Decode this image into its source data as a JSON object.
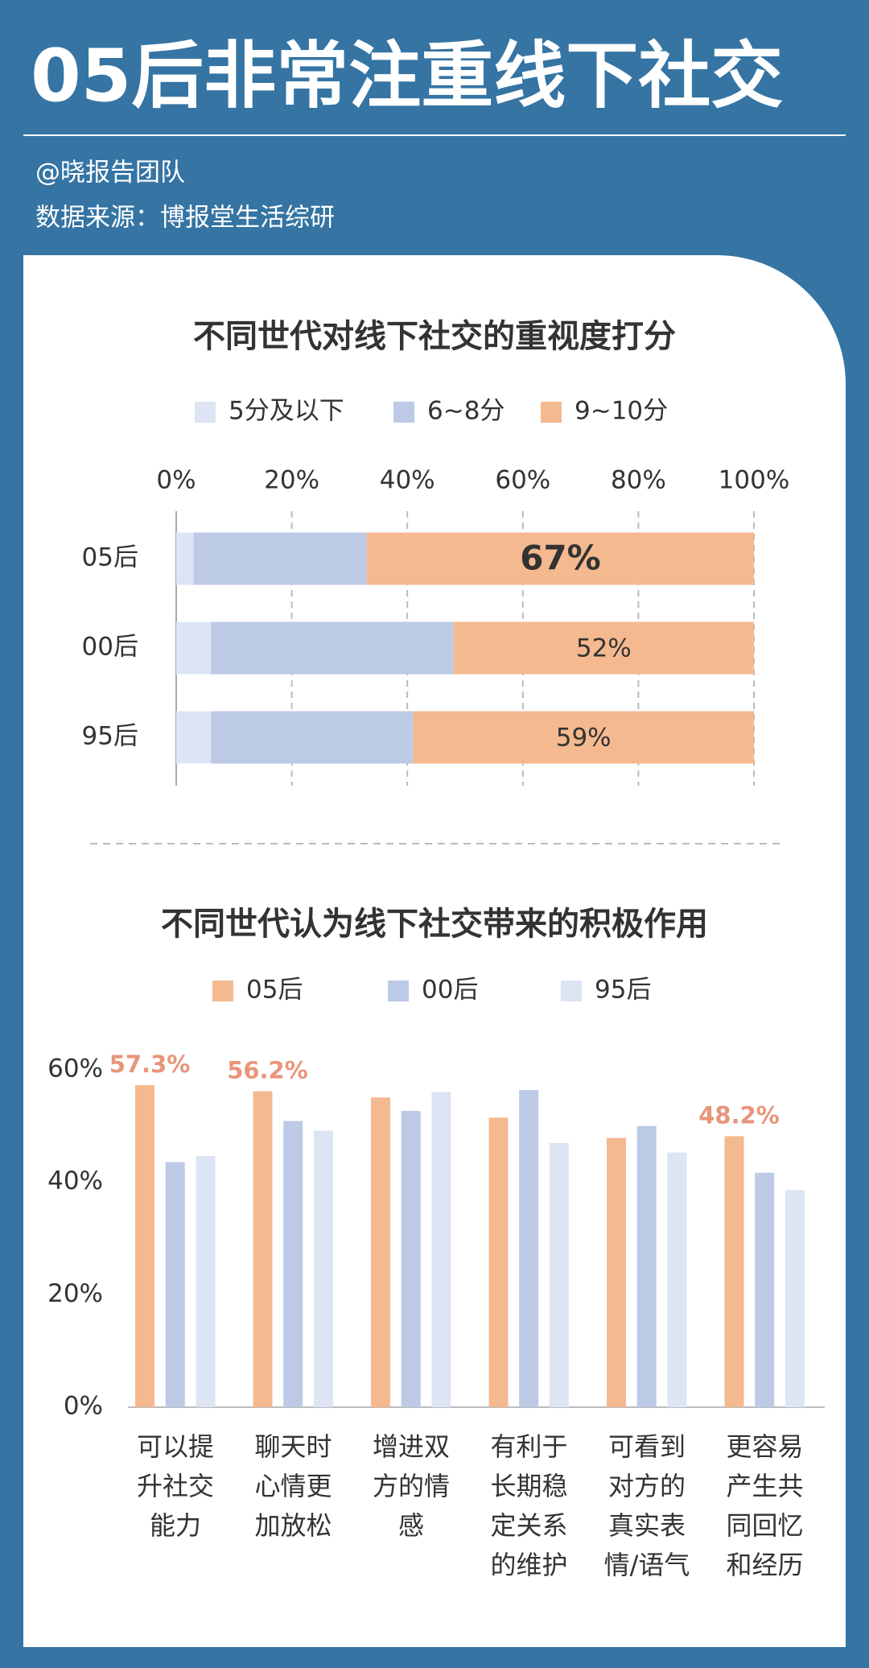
{
  "header": {
    "title": "05后非常注重线下社交",
    "author": "@晓报告团队",
    "source": "数据来源：博报堂生活综研"
  },
  "chart_data": [
    {
      "type": "stacked_bar_h",
      "title": "不同世代对线下社交的重视度打分",
      "categories": [
        "05后",
        "00后",
        "95后"
      ],
      "series": [
        {
          "name": "5分及以下",
          "color": "#dde5f4",
          "values": [
            3,
            6,
            6
          ]
        },
        {
          "name": "6~8分",
          "color": "#bccae6",
          "values": [
            30,
            42,
            35
          ]
        },
        {
          "name": "9~10分",
          "color": "#f5b990",
          "values": [
            67,
            52,
            59
          ],
          "value_labels": [
            "67%",
            "52%",
            "59%"
          ]
        }
      ],
      "xlim": [
        0,
        100
      ],
      "xticks": [
        {
          "value": 0,
          "label": "0%"
        },
        {
          "value": 20,
          "label": "20%"
        },
        {
          "value": 40,
          "label": "40%"
        },
        {
          "value": 60,
          "label": "60%"
        },
        {
          "value": 80,
          "label": "80%"
        },
        {
          "value": 100,
          "label": "100%"
        }
      ],
      "grid": true,
      "legend": "top"
    },
    {
      "type": "grouped_bar",
      "title": "不同世代认为线下社交带来的积极作用",
      "categories": [
        "可以提\n升社交\n能力",
        "聊天时\n心情更\n加放松",
        "增进双\n方的情\n感",
        "有利于\n长期稳\n定关系\n的维护",
        "可看到\n对方的\n真实表\n情/语气",
        "更容易\n产生共\n同回忆\n和经历"
      ],
      "series": [
        {
          "name": "05后",
          "color": "#f5b990",
          "values": [
            57.3,
            56.2,
            55.1,
            51.5,
            47.9,
            48.2
          ],
          "value_labels": [
            "57.3%",
            "56.2%",
            null,
            null,
            null,
            "48.2%"
          ]
        },
        {
          "name": "00后",
          "color": "#bccae6",
          "values": [
            43.6,
            50.9,
            52.7,
            56.4,
            50.0,
            41.7
          ]
        },
        {
          "name": "95后",
          "color": "#dde5f4",
          "values": [
            44.7,
            49.2,
            56.1,
            47.0,
            45.3,
            38.6
          ]
        }
      ],
      "ylim": [
        0,
        60
      ],
      "yticks": [
        {
          "value": 0,
          "label": "0%"
        },
        {
          "value": 20,
          "label": "20%"
        },
        {
          "value": 40,
          "label": "40%"
        },
        {
          "value": 60,
          "label": "60%"
        }
      ],
      "grid": false,
      "legend": "top"
    }
  ]
}
